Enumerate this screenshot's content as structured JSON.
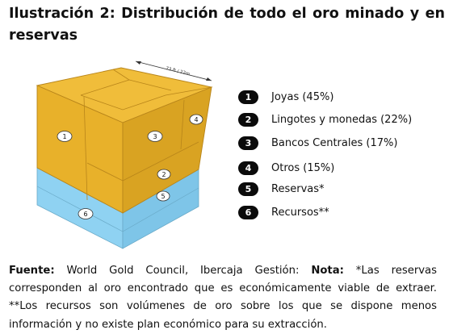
{
  "title": "Ilustración 2: Distribución de todo el oro minado y en reservas",
  "dimension_label": "73 ft / 22m",
  "cube_labels": [
    "1",
    "2",
    "3",
    "4",
    "5",
    "6"
  ],
  "legend": [
    {
      "num": "1",
      "label": "Joyas (45%)"
    },
    {
      "num": "2",
      "label": "Lingotes y monedas (22%)"
    },
    {
      "num": "3",
      "label": "Bancos Centrales (17%)"
    },
    {
      "num": "4",
      "label": "Otros (15%)"
    },
    {
      "num": "5",
      "label": "Reservas*"
    },
    {
      "num": "6",
      "label": "Recursos**"
    }
  ],
  "footer": {
    "source_label": "Fuente:",
    "source_text": " World Gold Council, Ibercaja Gestión: ",
    "note_label": "Nota:",
    "note_text": " *Las reservas corresponden al oro encontrado que es económicamente viable de extraer. **Los recursos son volúmenes de oro sobre los que se dispone menos información y no existe plan económico para su extracción."
  },
  "colors": {
    "gold": "#e8b12a",
    "gold_dark": "#cf9a1c",
    "blue": "#8fd2f2",
    "badge": "#0b0b0b"
  }
}
